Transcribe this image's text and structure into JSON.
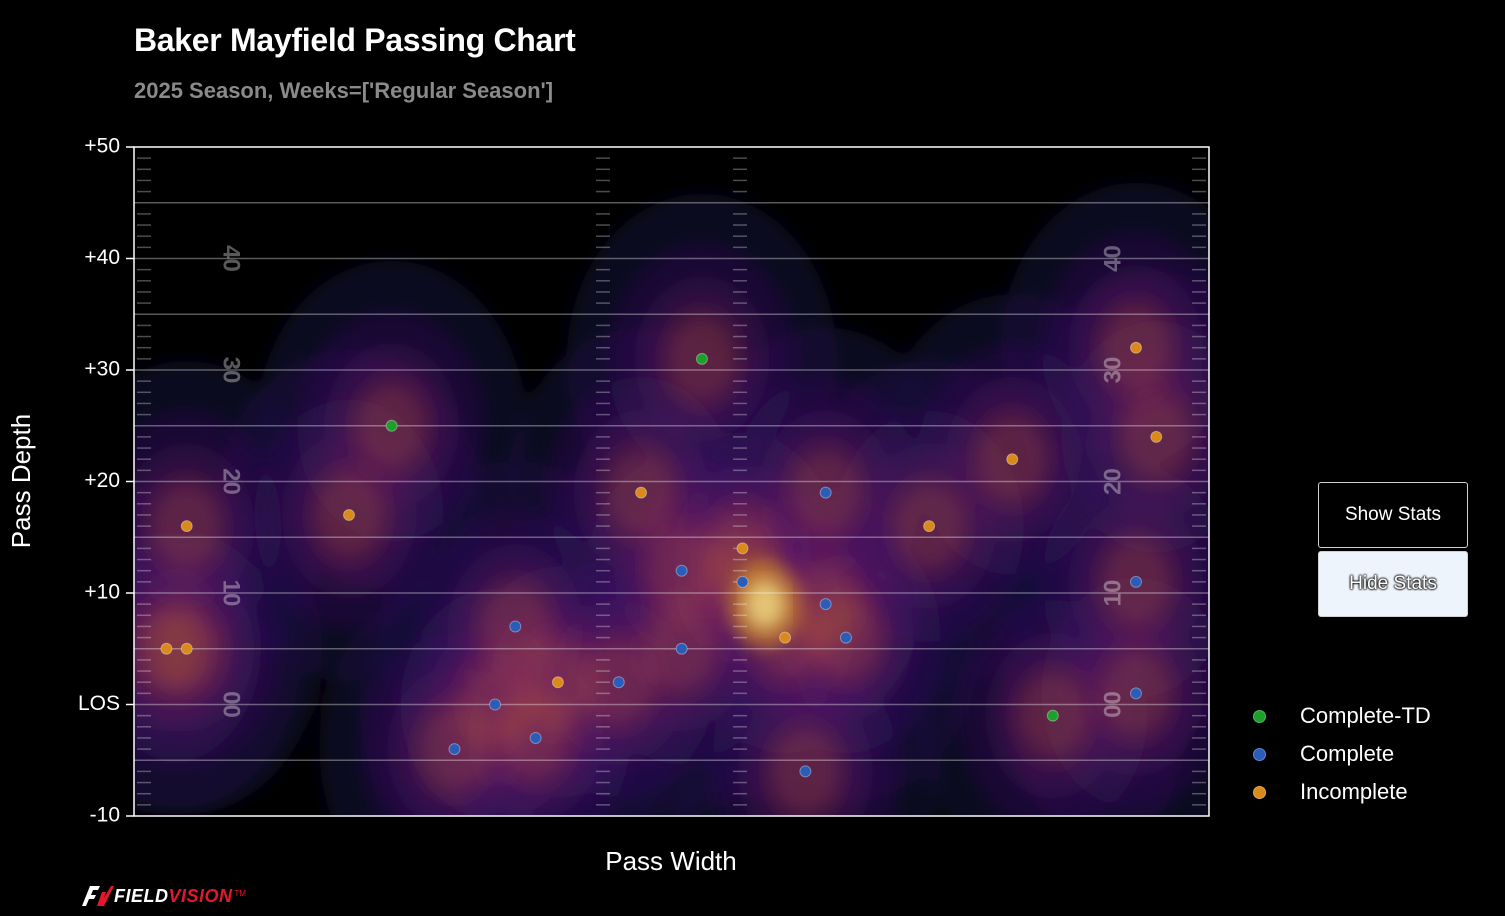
{
  "header": {
    "title": "Baker Mayfield Passing Chart",
    "subtitle": "2025 Season, Weeks=['Regular Season']"
  },
  "buttons": {
    "show_stats": "Show Stats",
    "hide_stats": "Hide Stats"
  },
  "logo": {
    "prefix": "FIELD",
    "accent": "VISION",
    "mark": "TM"
  },
  "colors": {
    "complete_td": "#1e9e2a",
    "complete": "#2b5cb8",
    "incomplete": "#d98a1c",
    "background": "#000000"
  },
  "chart_data": {
    "type": "scatter",
    "title": "Baker Mayfield Passing Chart",
    "subtitle": "2025 Season, Weeks=['Regular Season']",
    "xlabel": "Pass Width",
    "ylabel": "Pass Depth",
    "xlim": [
      -26.5,
      26.5
    ],
    "ylim": [
      -10,
      50
    ],
    "y_ticks": [
      {
        "value": 50,
        "label": "+50"
      },
      {
        "value": 40,
        "label": "+40"
      },
      {
        "value": 30,
        "label": "+30"
      },
      {
        "value": 20,
        "label": "+20"
      },
      {
        "value": 10,
        "label": "+10"
      },
      {
        "value": 0,
        "label": "LOS"
      },
      {
        "value": -10,
        "label": "-10"
      }
    ],
    "yard_numbers": [
      {
        "value": 40,
        "label": "40"
      },
      {
        "value": 30,
        "label": "30"
      },
      {
        "value": 20,
        "label": "20"
      },
      {
        "value": 10,
        "label": "10"
      },
      {
        "value": 0,
        "label": "00"
      }
    ],
    "grid": true,
    "legend_position": "right",
    "density_overlay": true,
    "series": [
      {
        "name": "Complete-TD",
        "points": [
          {
            "x": -13.8,
            "y": 25
          },
          {
            "x": 1.5,
            "y": 31
          },
          {
            "x": 18.8,
            "y": -1
          }
        ]
      },
      {
        "name": "Complete",
        "points": [
          {
            "x": -10.7,
            "y": -4
          },
          {
            "x": -8.7,
            "y": 0
          },
          {
            "x": -7.7,
            "y": 7
          },
          {
            "x": -6.7,
            "y": -3
          },
          {
            "x": -2.6,
            "y": 2
          },
          {
            "x": 0.5,
            "y": 12
          },
          {
            "x": 0.5,
            "y": 5
          },
          {
            "x": 3.5,
            "y": 11
          },
          {
            "x": 6.6,
            "y": -6
          },
          {
            "x": 7.6,
            "y": 19
          },
          {
            "x": 7.6,
            "y": 9
          },
          {
            "x": 8.6,
            "y": 6
          },
          {
            "x": 22.9,
            "y": 11
          },
          {
            "x": 22.9,
            "y": 1
          }
        ]
      },
      {
        "name": "Incomplete",
        "points": [
          {
            "x": -24.9,
            "y": 5
          },
          {
            "x": -23.9,
            "y": 16
          },
          {
            "x": -23.9,
            "y": 5
          },
          {
            "x": -15.9,
            "y": 17
          },
          {
            "x": -5.6,
            "y": 2
          },
          {
            "x": -1.5,
            "y": 19
          },
          {
            "x": 3.5,
            "y": 14
          },
          {
            "x": 5.6,
            "y": 6
          },
          {
            "x": 12.7,
            "y": 16
          },
          {
            "x": 16.8,
            "y": 22
          },
          {
            "x": 22.9,
            "y": 32
          },
          {
            "x": 23.9,
            "y": 24
          }
        ]
      }
    ]
  }
}
